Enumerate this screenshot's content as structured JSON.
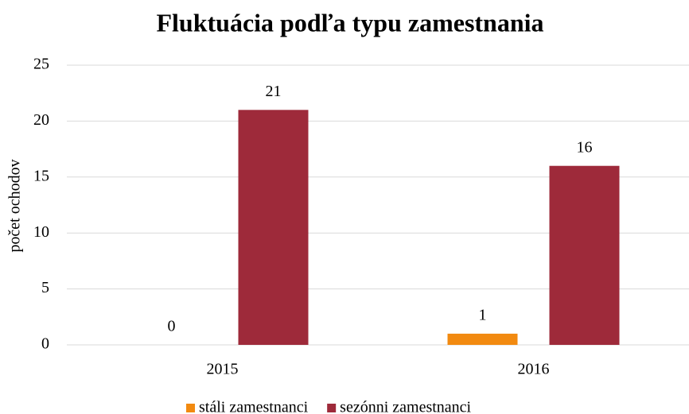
{
  "chart_data": {
    "type": "bar",
    "title": "Fluktuácia podľa typu zamestnania",
    "y_label": "počet ochodov",
    "categories": [
      "2015",
      "2016"
    ],
    "series": [
      {
        "name": "stáli zamestnanci",
        "color": "#f28a10",
        "values": [
          0,
          1
        ]
      },
      {
        "name": "sezónni zamestnanci",
        "color": "#9e2a3a",
        "values": [
          21,
          16
        ]
      }
    ],
    "ylim": [
      0,
      25
    ],
    "yticks": [
      0,
      5,
      10,
      15,
      20,
      25
    ],
    "grid": true,
    "legend": "bottom"
  }
}
